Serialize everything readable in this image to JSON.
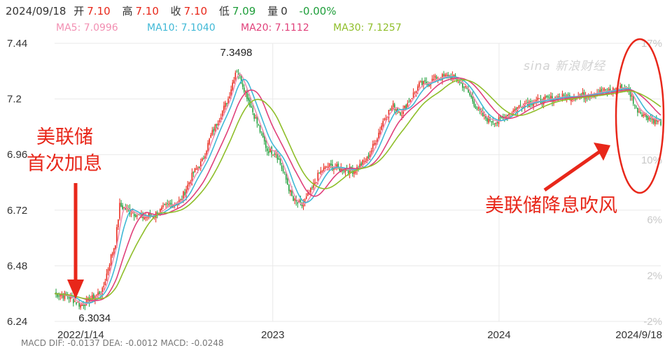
{
  "header": {
    "date": "2024/09/18",
    "open_label": "开",
    "open": "7.10",
    "high_label": "高",
    "high": "7.10",
    "close_label": "收",
    "close": "7.10",
    "low_label": "低",
    "low": "7.09",
    "vol_label": "量",
    "vol": "0",
    "change": "-0.00%"
  },
  "ma_legend": [
    {
      "label": "MA5: 7.0996",
      "color": "#f28fb2"
    },
    {
      "label": "MA10: 7.1040",
      "color": "#3fb8d6"
    },
    {
      "label": "MA20: 7.1112",
      "color": "#e0407a"
    },
    {
      "label": "MA30: 7.1257",
      "color": "#8fbe2a"
    }
  ],
  "annotations": {
    "left_line1": "美联储",
    "left_line2": "首次加息",
    "right": "美联储降息吹风"
  },
  "watermark": "sina 新浪财经",
  "colors": {
    "up": "#e8271a",
    "down": "#1e9e3a",
    "annotation": "#e8271a",
    "grid": "#e9e9e9"
  },
  "chart_data": {
    "type": "candlestick",
    "x_ticks": [
      "2022/1/14",
      "2023",
      "2024",
      "2024/9/18"
    ],
    "y_left_ticks": [
      "7.44",
      "7.2",
      "6.96",
      "6.72",
      "6.48",
      "6.24"
    ],
    "y_right_ticks": [
      "17%",
      "10%",
      "6%",
      "2%",
      "-2%"
    ],
    "y_range": [
      6.24,
      7.44
    ],
    "grid": true,
    "labels": [
      {
        "text": "7.3498",
        "anchor": "2022-11-03"
      },
      {
        "text": "6.3034",
        "anchor": "2022-02-25"
      }
    ],
    "close_path": [
      [
        "2022-01-14",
        6.36
      ],
      [
        "2022-02-04",
        6.35
      ],
      [
        "2022-02-25",
        6.31
      ],
      [
        "2022-03-11",
        6.33
      ],
      [
        "2022-03-25",
        6.36
      ],
      [
        "2022-04-01",
        6.37
      ],
      [
        "2022-04-15",
        6.52
      ],
      [
        "2022-04-22",
        6.58
      ],
      [
        "2022-04-29",
        6.74
      ],
      [
        "2022-05-13",
        6.72
      ],
      [
        "2022-06-03",
        6.69
      ],
      [
        "2022-06-24",
        6.7
      ],
      [
        "2022-07-15",
        6.74
      ],
      [
        "2022-08-05",
        6.76
      ],
      [
        "2022-08-26",
        6.88
      ],
      [
        "2022-09-09",
        6.93
      ],
      [
        "2022-09-23",
        7.04
      ],
      [
        "2022-10-07",
        7.12
      ],
      [
        "2022-10-21",
        7.2
      ],
      [
        "2022-11-03",
        7.33
      ],
      [
        "2022-11-11",
        7.28
      ],
      [
        "2022-11-25",
        7.18
      ],
      [
        "2022-12-09",
        7.08
      ],
      [
        "2022-12-23",
        6.98
      ],
      [
        "2023-01-06",
        6.97
      ],
      [
        "2023-01-20",
        6.87
      ],
      [
        "2023-02-03",
        6.76
      ],
      [
        "2023-02-17",
        6.74
      ],
      [
        "2023-03-03",
        6.8
      ],
      [
        "2023-03-17",
        6.88
      ],
      [
        "2023-03-31",
        6.91
      ],
      [
        "2023-04-21",
        6.9
      ],
      [
        "2023-05-12",
        6.89
      ],
      [
        "2023-06-02",
        6.94
      ],
      [
        "2023-06-16",
        7.02
      ],
      [
        "2023-06-30",
        7.12
      ],
      [
        "2023-07-14",
        7.17
      ],
      [
        "2023-07-28",
        7.14
      ],
      [
        "2023-08-11",
        7.2
      ],
      [
        "2023-08-25",
        7.26
      ],
      [
        "2023-09-08",
        7.27
      ],
      [
        "2023-09-22",
        7.29
      ],
      [
        "2023-10-13",
        7.3
      ],
      [
        "2023-10-27",
        7.28
      ],
      [
        "2023-11-10",
        7.24
      ],
      [
        "2023-11-24",
        7.17
      ],
      [
        "2023-12-08",
        7.12
      ],
      [
        "2023-12-29",
        7.1
      ],
      [
        "2024-01-19",
        7.14
      ],
      [
        "2024-02-09",
        7.18
      ],
      [
        "2024-03-01",
        7.19
      ],
      [
        "2024-03-22",
        7.2
      ],
      [
        "2024-04-12",
        7.21
      ],
      [
        "2024-05-03",
        7.21
      ],
      [
        "2024-05-24",
        7.22
      ],
      [
        "2024-06-14",
        7.23
      ],
      [
        "2024-07-05",
        7.24
      ],
      [
        "2024-07-19",
        7.25
      ],
      [
        "2024-07-26",
        7.24
      ],
      [
        "2024-08-02",
        7.21
      ],
      [
        "2024-08-09",
        7.16
      ],
      [
        "2024-08-23",
        7.13
      ],
      [
        "2024-09-06",
        7.11
      ],
      [
        "2024-09-18",
        7.1
      ]
    ]
  },
  "bottom_row_partial": "MACD  DIF: -0.0137   DEA: -0.0012   MACD: -0.0248"
}
